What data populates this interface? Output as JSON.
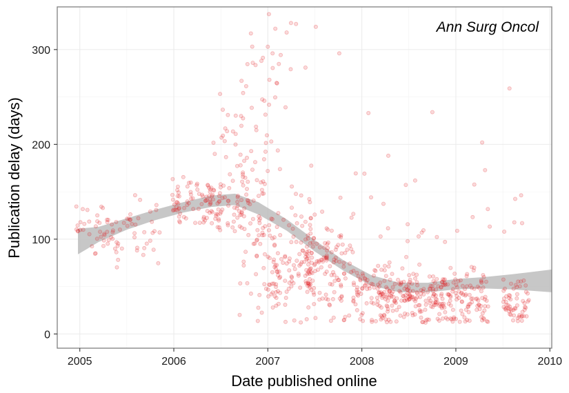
{
  "chart_data": {
    "type": "scatter",
    "annotation": "Ann Surg Oncol",
    "xlabel": "Date published online",
    "ylabel": "Publication delay (days)",
    "x_ticks": [
      "2005",
      "2006",
      "2007",
      "2008",
      "2009",
      "2010"
    ],
    "y_ticks": [
      "0",
      "100",
      "200",
      "300"
    ],
    "xlim": [
      2004.76,
      2010.02
    ],
    "ylim": [
      -15,
      345
    ],
    "grid": true,
    "legend": "none",
    "point_color": "#e31a1c",
    "smooth_color": "#bdbdbd",
    "clusters": [
      {
        "x": [
          2004.96,
          2005.32
        ],
        "y_center": 110,
        "y_spread": 12,
        "n": 30
      },
      {
        "x": [
          2005.25,
          2005.45
        ],
        "y_center": 100,
        "y_spread": 15,
        "n": 20
      },
      {
        "x": [
          2005.45,
          2005.85
        ],
        "y_center": 112,
        "y_spread": 18,
        "n": 30
      },
      {
        "x": [
          2005.97,
          2006.45
        ],
        "y_center": 140,
        "y_spread": 12,
        "n": 80
      },
      {
        "x": [
          2006.45,
          2006.72
        ],
        "y_center": 135,
        "y_spread": 15,
        "n": 40
      },
      {
        "x": [
          2006.4,
          2006.72
        ],
        "y_center": 190,
        "y_spread": 30,
        "n": 20
      },
      {
        "x": [
          2006.7,
          2007.0
        ],
        "y_center": 120,
        "y_spread": 50,
        "n": 80
      },
      {
        "x": [
          2006.7,
          2007.3
        ],
        "y_center": 240,
        "y_spread": 50,
        "n": 30
      },
      {
        "x": [
          2007.0,
          2007.5
        ],
        "y_center": 80,
        "y_spread": 30,
        "n": 120
      },
      {
        "x": [
          2007.4,
          2007.9
        ],
        "y_center": 65,
        "y_spread": 25,
        "n": 120
      },
      {
        "x": [
          2007.9,
          2008.3
        ],
        "y_center": 45,
        "y_spread": 18,
        "n": 100
      },
      {
        "x": [
          2008.3,
          2008.9
        ],
        "y_center": 40,
        "y_spread": 14,
        "n": 160
      },
      {
        "x": [
          2008.9,
          2009.35
        ],
        "y_center": 40,
        "y_spread": 15,
        "n": 100
      },
      {
        "x": [
          2009.5,
          2009.78
        ],
        "y_center": 35,
        "y_spread": 12,
        "n": 60
      },
      {
        "x": [
          2007.0,
          2009.8
        ],
        "y_center": 130,
        "y_spread": 40,
        "n": 40
      }
    ],
    "outliers": [
      {
        "x": 2006.82,
        "y": 317
      },
      {
        "x": 2007.08,
        "y": 322
      },
      {
        "x": 2007.3,
        "y": 327
      },
      {
        "x": 2007.51,
        "y": 324
      },
      {
        "x": 2007.0,
        "y": 303
      },
      {
        "x": 2007.05,
        "y": 296
      },
      {
        "x": 2007.76,
        "y": 296
      },
      {
        "x": 2007.2,
        "y": 318
      },
      {
        "x": 2006.84,
        "y": 286
      },
      {
        "x": 2007.4,
        "y": 281
      },
      {
        "x": 2006.72,
        "y": 267
      },
      {
        "x": 2009.57,
        "y": 259
      },
      {
        "x": 2009.28,
        "y": 202
      },
      {
        "x": 2008.07,
        "y": 233
      },
      {
        "x": 2008.75,
        "y": 234
      }
    ],
    "smooth": [
      {
        "x": 2004.98,
        "y": 97,
        "lo": 84,
        "hi": 111
      },
      {
        "x": 2005.2,
        "y": 105,
        "lo": 97,
        "hi": 113
      },
      {
        "x": 2005.5,
        "y": 116,
        "lo": 110,
        "hi": 122
      },
      {
        "x": 2005.8,
        "y": 125,
        "lo": 120,
        "hi": 131
      },
      {
        "x": 2006.1,
        "y": 133,
        "lo": 128,
        "hi": 139
      },
      {
        "x": 2006.4,
        "y": 140,
        "lo": 134,
        "hi": 146
      },
      {
        "x": 2006.65,
        "y": 142,
        "lo": 136,
        "hi": 148
      },
      {
        "x": 2006.9,
        "y": 133,
        "lo": 126,
        "hi": 139
      },
      {
        "x": 2007.2,
        "y": 115,
        "lo": 109,
        "hi": 121
      },
      {
        "x": 2007.5,
        "y": 93,
        "lo": 87,
        "hi": 99
      },
      {
        "x": 2007.8,
        "y": 72,
        "lo": 67,
        "hi": 78
      },
      {
        "x": 2008.1,
        "y": 56,
        "lo": 51,
        "hi": 62
      },
      {
        "x": 2008.4,
        "y": 49,
        "lo": 44,
        "hi": 54
      },
      {
        "x": 2008.7,
        "y": 49,
        "lo": 44,
        "hi": 54
      },
      {
        "x": 2009.0,
        "y": 52,
        "lo": 47,
        "hi": 58
      },
      {
        "x": 2009.3,
        "y": 54,
        "lo": 48,
        "hi": 60
      },
      {
        "x": 2009.6,
        "y": 55,
        "lo": 47,
        "hi": 63
      },
      {
        "x": 2010.02,
        "y": 56,
        "lo": 44,
        "hi": 68
      }
    ]
  }
}
